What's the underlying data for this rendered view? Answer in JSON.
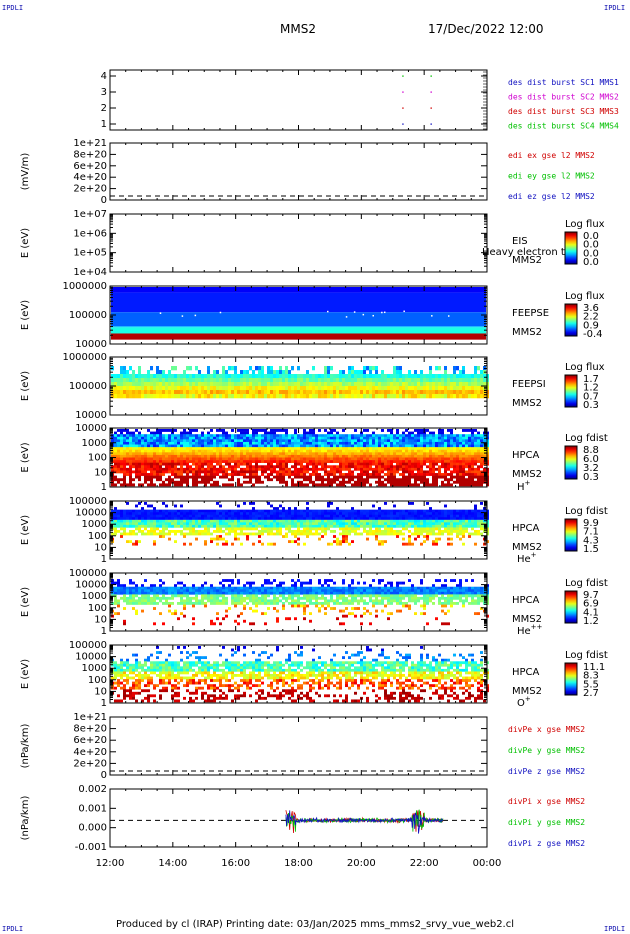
{
  "header": {
    "corner_tl": "IPDLI",
    "corner_tr": "IPDLI",
    "corner_bl": "IPDLI",
    "corner_br": "IPDLI",
    "spacecraft": "MMS2",
    "datetime": "17/Dec/2022 12:00"
  },
  "footer": {
    "text": "Produced by cl (IRAP)    Printing date: 03/Jan/2025    mms_mms2_srvy_vue_web2.cl"
  },
  "colors": {
    "frame": "#000000",
    "sc1": "#1010c0",
    "sc2": "#d000d0",
    "sc3": "#d00000",
    "sc4": "#00c000",
    "x": "#d00000",
    "y": "#00c000",
    "z": "#1010c0"
  },
  "chart_data": {
    "type": "heatmap",
    "x_ticks": [
      "12:00",
      "14:00",
      "16:00",
      "18:00",
      "20:00",
      "22:00",
      "00:00"
    ],
    "x_range_hours": [
      12,
      24
    ],
    "panels": [
      {
        "id": "burst",
        "type": "scatter",
        "y_ticks": [
          "4",
          "3",
          "2",
          "1"
        ],
        "legend": [
          {
            "text": "des dist burst SC1 MMS1",
            "color": "#1010c0"
          },
          {
            "text": "des dist burst SC2 MMS2",
            "color": "#d000d0"
          },
          {
            "text": "des dist burst SC3 MMS3",
            "color": "#d00000"
          },
          {
            "text": "des dist burst SC4 MMS4",
            "color": "#00c000"
          }
        ],
        "marks_hours": [
          21.3,
          22.2
        ]
      },
      {
        "id": "edi",
        "type": "line",
        "ylabel": "(mV/m)",
        "y_ticks": [
          "1e+21",
          "8e+20",
          "6e+20",
          "4e+20",
          "2e+20",
          "0"
        ],
        "legend": [
          {
            "text": "edi ex gse l2 MMS2",
            "color": "#d00000"
          },
          {
            "text": "edi ey gse l2 MMS2",
            "color": "#00c000"
          },
          {
            "text": "edi ez gse l2 MMS2",
            "color": "#1010c0"
          }
        ]
      },
      {
        "id": "eis",
        "type": "heatmap",
        "ylabel": "E (eV)",
        "y_ticks": [
          "1e+07",
          "1e+06",
          "1e+05",
          "1e+04"
        ],
        "label_lines": [
          "EIS",
          "MMS2"
        ],
        "overlay_text": "Heavy electron to",
        "cbar_title": "Log flux",
        "cbar_ticks": [
          "0.0",
          "0.0",
          "0.0",
          "0.0"
        ]
      },
      {
        "id": "feepse",
        "type": "heatmap",
        "ylabel": "E (eV)",
        "y_ticks": [
          "1000000",
          "100000",
          "10000"
        ],
        "label_lines": [
          "FEEPSE",
          "MMS2"
        ],
        "cbar_title": "Log flux",
        "cbar_ticks": [
          "3.6",
          "2.2",
          "0.9",
          "-0.4"
        ]
      },
      {
        "id": "feepsi",
        "type": "heatmap",
        "ylabel": "E (eV)",
        "y_ticks": [
          "1000000",
          "100000",
          "10000"
        ],
        "label_lines": [
          "FEEPSI",
          "MMS2"
        ],
        "cbar_title": "Log flux",
        "cbar_ticks": [
          "1.7",
          "1.2",
          "0.7",
          "0.3"
        ]
      },
      {
        "id": "hpca_h",
        "type": "heatmap",
        "ylabel": "E (eV)",
        "y_ticks": [
          "10000",
          "1000",
          "100",
          "10",
          "1"
        ],
        "label_lines": [
          "HPCA",
          "MMS2"
        ],
        "species": "H",
        "species_sup": "+",
        "cbar_title": "Log fdist",
        "cbar_ticks": [
          "8.8",
          "6.0",
          "3.2",
          "0.3"
        ]
      },
      {
        "id": "hpca_he",
        "type": "heatmap",
        "ylabel": "E (eV)",
        "y_ticks": [
          "100000",
          "10000",
          "1000",
          "100",
          "10",
          "1"
        ],
        "label_lines": [
          "HPCA",
          "MMS2"
        ],
        "species": "He",
        "species_sup": "+",
        "cbar_title": "Log fdist",
        "cbar_ticks": [
          "9.9",
          "7.1",
          "4.3",
          "1.5"
        ]
      },
      {
        "id": "hpca_hepp",
        "type": "heatmap",
        "ylabel": "E (eV)",
        "y_ticks": [
          "100000",
          "10000",
          "1000",
          "100",
          "10",
          "1"
        ],
        "label_lines": [
          "HPCA",
          "MMS2"
        ],
        "species": "He",
        "species_sup": "++",
        "cbar_title": "Log fdist",
        "cbar_ticks": [
          "9.7",
          "6.9",
          "4.1",
          "1.2"
        ]
      },
      {
        "id": "hpca_o",
        "type": "heatmap",
        "ylabel": "E (eV)",
        "y_ticks": [
          "100000",
          "10000",
          "1000",
          "100",
          "10",
          "1"
        ],
        "label_lines": [
          "HPCA",
          "MMS2"
        ],
        "species": "O",
        "species_sup": "+",
        "cbar_title": "Log fdist",
        "cbar_ticks": [
          "11.1",
          "8.3",
          "5.5",
          "2.7"
        ]
      },
      {
        "id": "divpe",
        "type": "line",
        "ylabel": "(nPa/km)",
        "y_ticks": [
          "1e+21",
          "8e+20",
          "6e+20",
          "4e+20",
          "2e+20",
          "0"
        ],
        "legend": [
          {
            "text": "divPe x gse MMS2",
            "color": "#d00000"
          },
          {
            "text": "divPe y gse MMS2",
            "color": "#00c000"
          },
          {
            "text": "divPe z gse MMS2",
            "color": "#1010c0"
          }
        ]
      },
      {
        "id": "divpi",
        "type": "line",
        "ylabel": "(nPa/km)",
        "y_ticks": [
          "0.002",
          "0.001",
          "0.000",
          "-0.001"
        ],
        "y_range": [
          -0.0017,
          0.002
        ],
        "active_hours": [
          17.6,
          22.6
        ],
        "legend": [
          {
            "text": "divPi x gse MMS2",
            "color": "#d00000"
          },
          {
            "text": "divPi y gse MMS2",
            "color": "#00c000"
          },
          {
            "text": "divPi z gse MMS2",
            "color": "#1010c0"
          }
        ]
      }
    ]
  }
}
